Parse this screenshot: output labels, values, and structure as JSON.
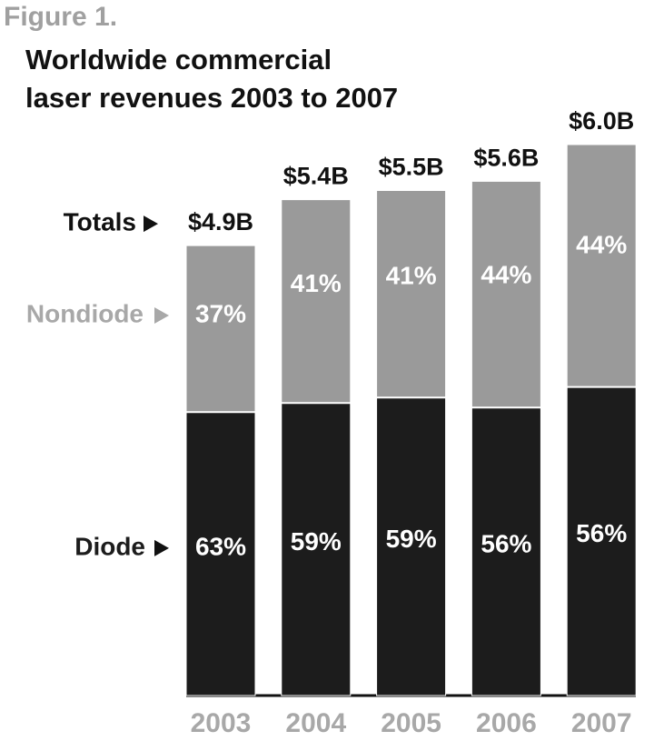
{
  "chart_data": {
    "type": "bar",
    "stacked": true,
    "figure_label": "Figure 1.",
    "title": [
      "Worldwide commercial",
      "laser revenues 2003 to 2007"
    ],
    "categories": [
      "2003",
      "2004",
      "2005",
      "2006",
      "2007"
    ],
    "totals": {
      "name": "Totals",
      "values": [
        4.9,
        5.4,
        5.5,
        5.6,
        6.0
      ],
      "value_labels": [
        "$4.9B",
        "$5.4B",
        "$5.5B",
        "$5.6B",
        "$6.0B"
      ]
    },
    "series": [
      {
        "name": "Diode",
        "color": "#1c1c1c",
        "values": [
          63,
          59,
          59,
          56,
          56
        ],
        "value_labels": [
          "63%",
          "59%",
          "59%",
          "56%",
          "56%"
        ]
      },
      {
        "name": "Nondiode",
        "color": "#9a9a9a",
        "values": [
          37,
          41,
          41,
          44,
          44
        ],
        "value_labels": [
          "37%",
          "41%",
          "41%",
          "44%",
          "44%"
        ]
      }
    ]
  }
}
